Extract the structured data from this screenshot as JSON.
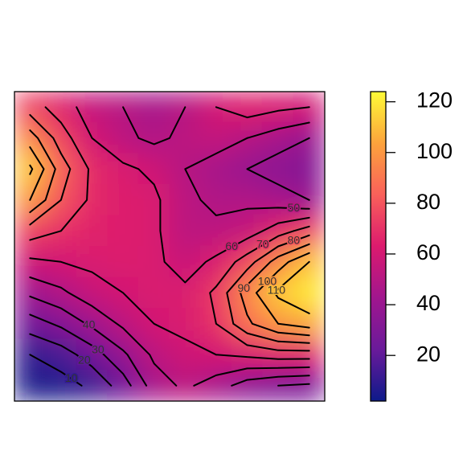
{
  "chart_data": {
    "type": "contour",
    "grid_values": [
      [
        75,
        65,
        55,
        50,
        45,
        50,
        60,
        65,
        62,
        60
      ],
      [
        95,
        75,
        60,
        52,
        48,
        52,
        55,
        50,
        45,
        40
      ],
      [
        112,
        85,
        68,
        62,
        58,
        50,
        45,
        40,
        35,
        32
      ],
      [
        100,
        80,
        68,
        64,
        62,
        52,
        48,
        48,
        45,
        40
      ],
      [
        75,
        70,
        66,
        64,
        62,
        52,
        52,
        55,
        65,
        75
      ],
      [
        58,
        60,
        62,
        63,
        62,
        56,
        62,
        75,
        95,
        110
      ],
      [
        42,
        48,
        56,
        60,
        62,
        62,
        72,
        95,
        112,
        120
      ],
      [
        25,
        32,
        42,
        52,
        60,
        62,
        70,
        88,
        100,
        105
      ],
      [
        10,
        15,
        25,
        38,
        52,
        58,
        60,
        62,
        65,
        65
      ],
      [
        5,
        6,
        12,
        25,
        45,
        52,
        45,
        35,
        30,
        28
      ]
    ],
    "levels": [
      10,
      20,
      30,
      40,
      50,
      60,
      70,
      80,
      90,
      100,
      110
    ],
    "zlim": [
      2,
      124
    ],
    "zticks": [
      20,
      40,
      60,
      80,
      100,
      120
    ],
    "colormap": [
      "#0d1a8a",
      "#6a1a9a",
      "#a0168e",
      "#dc1a6e",
      "#f9605a",
      "#fca33c",
      "#fefb37"
    ],
    "line_color": "#000000"
  }
}
